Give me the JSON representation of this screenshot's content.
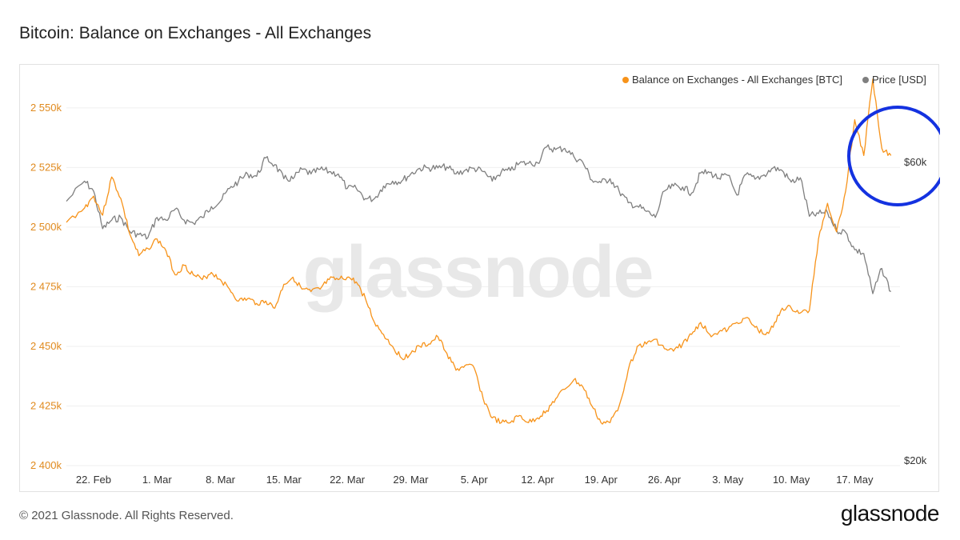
{
  "title": "Bitcoin: Balance on Exchanges - All Exchanges",
  "footer": {
    "copyright": "© 2021 Glassnode. All Rights Reserved.",
    "logo": "glassnode"
  },
  "watermark": "glassnode",
  "colors": {
    "balance": "#f7931a",
    "price": "#7f7f7f",
    "highlight_circle": "#1432e0",
    "grid": "#efefef"
  },
  "chart_data": {
    "type": "line",
    "title": "Bitcoin: Balance on Exchanges - All Exchanges",
    "legend": {
      "placement": "top-right",
      "entries": [
        {
          "name": "Balance on Exchanges - All Exchanges [BTC]",
          "color": "#f7931a"
        },
        {
          "name": "Price [USD]",
          "color": "#7f7f7f"
        }
      ]
    },
    "x_ticks": [
      "22. Feb",
      "1. Mar",
      "8. Mar",
      "15. Mar",
      "22. Mar",
      "29. Mar",
      "5. Apr",
      "12. Apr",
      "19. Apr",
      "26. Apr",
      "3. May",
      "10. May",
      "17. May"
    ],
    "y_left": {
      "ticks": [
        "2 400k",
        "2 425k",
        "2 450k",
        "2 475k",
        "2 500k",
        "2 525k",
        "2 550k"
      ],
      "range": [
        2400000,
        2560000
      ]
    },
    "y_right": {
      "ticks": [
        "$20k",
        "$60k"
      ],
      "scale": "log"
    },
    "grid": true,
    "annotation": "circle around mid-May balance spike",
    "series": [
      {
        "name": "Balance on Exchanges - All Exchanges [BTC]",
        "axis": "left",
        "points": [
          [
            "2021-02-19",
            2502000
          ],
          [
            "2021-02-21",
            2508000
          ],
          [
            "2021-02-22",
            2513000
          ],
          [
            "2021-02-23",
            2505000
          ],
          [
            "2021-02-24",
            2521000
          ],
          [
            "2021-02-25",
            2512000
          ],
          [
            "2021-02-26",
            2497000
          ],
          [
            "2021-02-27",
            2488000
          ],
          [
            "2021-02-28",
            2491000
          ],
          [
            "2021-03-01",
            2495000
          ],
          [
            "2021-03-02",
            2490000
          ],
          [
            "2021-03-03",
            2480000
          ],
          [
            "2021-03-04",
            2484000
          ],
          [
            "2021-03-05",
            2480000
          ],
          [
            "2021-03-06",
            2478000
          ],
          [
            "2021-03-07",
            2481000
          ],
          [
            "2021-03-08",
            2478000
          ],
          [
            "2021-03-09",
            2474000
          ],
          [
            "2021-03-10",
            2469000
          ],
          [
            "2021-03-11",
            2470000
          ],
          [
            "2021-03-12",
            2468000
          ],
          [
            "2021-03-13",
            2469000
          ],
          [
            "2021-03-14",
            2466000
          ],
          [
            "2021-03-15",
            2476000
          ],
          [
            "2021-03-16",
            2479000
          ],
          [
            "2021-03-17",
            2474000
          ],
          [
            "2021-03-18",
            2473000
          ],
          [
            "2021-03-19",
            2474000
          ],
          [
            "2021-03-20",
            2478000
          ],
          [
            "2021-03-21",
            2478000
          ],
          [
            "2021-03-22",
            2479000
          ],
          [
            "2021-03-23",
            2477000
          ],
          [
            "2021-03-24",
            2470000
          ],
          [
            "2021-03-25",
            2460000
          ],
          [
            "2021-03-26",
            2455000
          ],
          [
            "2021-03-27",
            2450000
          ],
          [
            "2021-03-28",
            2445000
          ],
          [
            "2021-03-29",
            2447000
          ],
          [
            "2021-03-30",
            2450000
          ],
          [
            "2021-03-31",
            2451000
          ],
          [
            "2021-04-01",
            2454000
          ],
          [
            "2021-04-02",
            2447000
          ],
          [
            "2021-04-03",
            2440000
          ],
          [
            "2021-04-04",
            2442000
          ],
          [
            "2021-04-05",
            2441000
          ],
          [
            "2021-04-06",
            2428000
          ],
          [
            "2021-04-07",
            2420000
          ],
          [
            "2021-04-08",
            2418000
          ],
          [
            "2021-04-09",
            2418000
          ],
          [
            "2021-04-10",
            2421000
          ],
          [
            "2021-04-11",
            2418000
          ],
          [
            "2021-04-12",
            2420000
          ],
          [
            "2021-04-13",
            2423000
          ],
          [
            "2021-04-14",
            2428000
          ],
          [
            "2021-04-15",
            2432000
          ],
          [
            "2021-04-16",
            2436000
          ],
          [
            "2021-04-17",
            2433000
          ],
          [
            "2021-04-18",
            2425000
          ],
          [
            "2021-04-19",
            2418000
          ],
          [
            "2021-04-20",
            2418000
          ],
          [
            "2021-04-21",
            2425000
          ],
          [
            "2021-04-22",
            2440000
          ],
          [
            "2021-04-23",
            2450000
          ],
          [
            "2021-04-24",
            2451000
          ],
          [
            "2021-04-25",
            2453000
          ],
          [
            "2021-04-26",
            2449000
          ],
          [
            "2021-04-27",
            2448000
          ],
          [
            "2021-04-28",
            2451000
          ],
          [
            "2021-04-29",
            2455000
          ],
          [
            "2021-04-30",
            2460000
          ],
          [
            "2021-05-01",
            2455000
          ],
          [
            "2021-05-02",
            2456000
          ],
          [
            "2021-05-03",
            2457000
          ],
          [
            "2021-05-04",
            2460000
          ],
          [
            "2021-05-05",
            2462000
          ],
          [
            "2021-05-06",
            2458000
          ],
          [
            "2021-05-07",
            2455000
          ],
          [
            "2021-05-08",
            2458000
          ],
          [
            "2021-05-09",
            2466000
          ],
          [
            "2021-05-10",
            2466000
          ],
          [
            "2021-05-11",
            2464000
          ],
          [
            "2021-05-12",
            2465000
          ],
          [
            "2021-05-13",
            2495000
          ],
          [
            "2021-05-14",
            2510000
          ],
          [
            "2021-05-15",
            2498000
          ],
          [
            "2021-05-16",
            2515000
          ],
          [
            "2021-05-17",
            2545000
          ],
          [
            "2021-05-18",
            2530000
          ],
          [
            "2021-05-19",
            2562000
          ],
          [
            "2021-05-20",
            2533000
          ],
          [
            "2021-05-21",
            2530000
          ]
        ]
      },
      {
        "name": "Price [USD]",
        "axis": "right",
        "points": [
          [
            "2021-02-19",
            52000
          ],
          [
            "2021-02-21",
            56000
          ],
          [
            "2021-02-22",
            54000
          ],
          [
            "2021-02-23",
            47000
          ],
          [
            "2021-02-24",
            48500
          ],
          [
            "2021-02-25",
            49000
          ],
          [
            "2021-02-26",
            46500
          ],
          [
            "2021-02-27",
            46000
          ],
          [
            "2021-02-28",
            45500
          ],
          [
            "2021-03-01",
            49000
          ],
          [
            "2021-03-02",
            48500
          ],
          [
            "2021-03-03",
            50500
          ],
          [
            "2021-03-04",
            48500
          ],
          [
            "2021-03-05",
            48000
          ],
          [
            "2021-03-06",
            49000
          ],
          [
            "2021-03-07",
            51000
          ],
          [
            "2021-03-08",
            52000
          ],
          [
            "2021-03-09",
            54500
          ],
          [
            "2021-03-10",
            56000
          ],
          [
            "2021-03-11",
            57500
          ],
          [
            "2021-03-12",
            57000
          ],
          [
            "2021-03-13",
            61000
          ],
          [
            "2021-03-14",
            59500
          ],
          [
            "2021-03-15",
            56500
          ],
          [
            "2021-03-16",
            56500
          ],
          [
            "2021-03-17",
            58500
          ],
          [
            "2021-03-18",
            57500
          ],
          [
            "2021-03-19",
            58500
          ],
          [
            "2021-03-20",
            58000
          ],
          [
            "2021-03-21",
            57500
          ],
          [
            "2021-03-22",
            54500
          ],
          [
            "2021-03-23",
            54500
          ],
          [
            "2021-03-24",
            52500
          ],
          [
            "2021-03-25",
            52500
          ],
          [
            "2021-03-26",
            55000
          ],
          [
            "2021-03-27",
            56000
          ],
          [
            "2021-03-28",
            56000
          ],
          [
            "2021-03-29",
            57500
          ],
          [
            "2021-03-30",
            58700
          ],
          [
            "2021-03-31",
            58800
          ],
          [
            "2021-04-01",
            58800
          ],
          [
            "2021-04-02",
            59000
          ],
          [
            "2021-04-03",
            57500
          ],
          [
            "2021-04-04",
            58300
          ],
          [
            "2021-04-05",
            58700
          ],
          [
            "2021-04-06",
            58000
          ],
          [
            "2021-04-07",
            56000
          ],
          [
            "2021-04-08",
            58000
          ],
          [
            "2021-04-09",
            58200
          ],
          [
            "2021-04-10",
            59800
          ],
          [
            "2021-04-11",
            59800
          ],
          [
            "2021-04-12",
            59900
          ],
          [
            "2021-04-13",
            63500
          ],
          [
            "2021-04-14",
            62900
          ],
          [
            "2021-04-15",
            63200
          ],
          [
            "2021-04-16",
            61300
          ],
          [
            "2021-04-17",
            60000
          ],
          [
            "2021-04-18",
            56200
          ],
          [
            "2021-04-19",
            55700
          ],
          [
            "2021-04-20",
            56500
          ],
          [
            "2021-04-21",
            54000
          ],
          [
            "2021-04-22",
            51700
          ],
          [
            "2021-04-23",
            51100
          ],
          [
            "2021-04-24",
            50100
          ],
          [
            "2021-04-25",
            49000
          ],
          [
            "2021-04-26",
            54000
          ],
          [
            "2021-04-27",
            55000
          ],
          [
            "2021-04-28",
            54800
          ],
          [
            "2021-04-29",
            53600
          ],
          [
            "2021-04-30",
            57700
          ],
          [
            "2021-05-01",
            57800
          ],
          [
            "2021-05-02",
            56600
          ],
          [
            "2021-05-03",
            57200
          ],
          [
            "2021-05-04",
            53200
          ],
          [
            "2021-05-05",
            57400
          ],
          [
            "2021-05-06",
            56400
          ],
          [
            "2021-05-07",
            57300
          ],
          [
            "2021-05-08",
            58800
          ],
          [
            "2021-05-09",
            58200
          ],
          [
            "2021-05-10",
            55800
          ],
          [
            "2021-05-11",
            56700
          ],
          [
            "2021-05-12",
            49200
          ],
          [
            "2021-05-13",
            49700
          ],
          [
            "2021-05-14",
            49900
          ],
          [
            "2021-05-15",
            46800
          ],
          [
            "2021-05-16",
            46400
          ],
          [
            "2021-05-17",
            43500
          ],
          [
            "2021-05-18",
            42900
          ],
          [
            "2021-05-19",
            37000
          ],
          [
            "2021-05-20",
            40600
          ],
          [
            "2021-05-21",
            37300
          ]
        ]
      }
    ]
  }
}
